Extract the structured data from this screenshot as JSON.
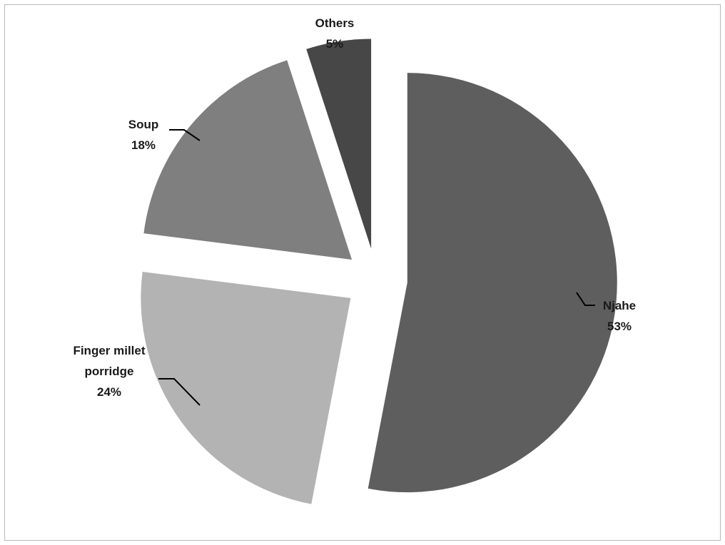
{
  "chart_data": {
    "type": "pie",
    "exploded": true,
    "legend": "none",
    "series": [
      {
        "labels": [
          "Njahe",
          "Finger millet porridge",
          "Soup",
          "Others"
        ],
        "label_lines": [
          [
            "Njahe"
          ],
          [
            "Finger millet",
            "porridge"
          ],
          [
            "Soup"
          ],
          [
            "Others"
          ]
        ],
        "values": [
          53,
          24,
          18,
          5
        ],
        "value_labels": [
          "53%",
          "24%",
          "18%",
          "5%"
        ],
        "colors": [
          "#5e5e5e",
          "#b3b3b3",
          "#7f7f7f",
          "#474747"
        ]
      }
    ]
  }
}
